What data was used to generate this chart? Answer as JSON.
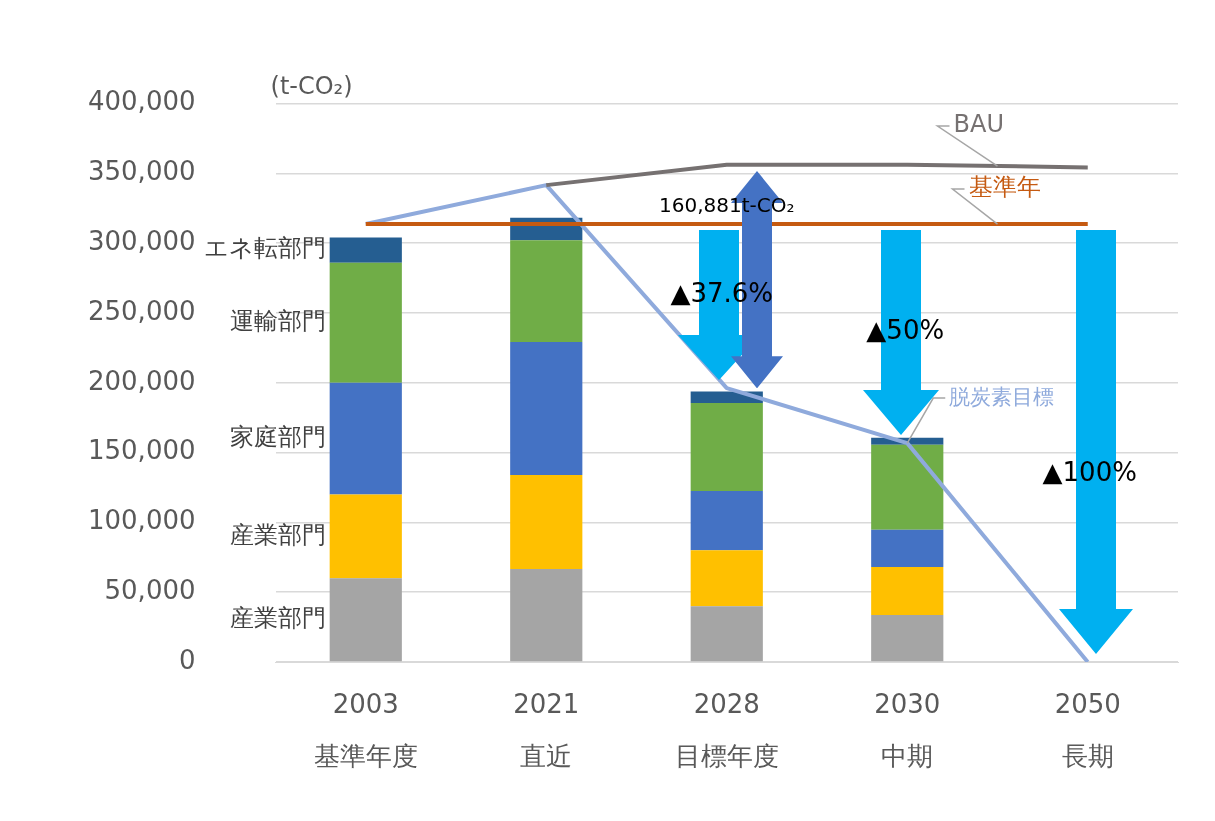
{
  "chart_data": {
    "type": "bar",
    "stacked": true,
    "ylabel": "(t-CO₂)",
    "categories": [
      "2003\n基準年度",
      "2021\n直近",
      "2028\n目標年度",
      "2030\n中期",
      "2050\n長期"
    ],
    "series": [
      {
        "name": "産業部門",
        "color": "#a5a5a5",
        "values": [
          60000,
          66700,
          40000,
          33700,
          null
        ]
      },
      {
        "name": "産業部門",
        "color": "#ffc000",
        "values": [
          60000,
          67300,
          40000,
          34300,
          null
        ]
      },
      {
        "name": "家庭部門",
        "color": "#4472c4",
        "values": [
          80000,
          95200,
          42500,
          26700,
          null
        ]
      },
      {
        "name": "運輸部門",
        "color": "#70ad47",
        "values": [
          86000,
          73000,
          63000,
          61000,
          null
        ]
      },
      {
        "name": "エネ転部門",
        "color": "#255e91",
        "values": [
          18000,
          16000,
          8300,
          5000,
          null
        ]
      },
      {
        "name": "BAU",
        "type": "line",
        "color": "#767171",
        "values": [
          null,
          341600,
          356200,
          356200,
          354300
        ]
      },
      {
        "name": "基準年",
        "type": "line",
        "color": "#c55a11",
        "values": [
          313700,
          313700,
          313700,
          313700,
          313700
        ]
      },
      {
        "name": "脱炭素目標",
        "type": "line",
        "color": "#8faadc",
        "values": [
          313700,
          341600,
          196200,
          156800,
          0
        ]
      }
    ],
    "ylim": [
      0,
      400000
    ],
    "yticks": [
      {
        "value": 0,
        "label": "0"
      },
      {
        "value": 50000,
        "label": "50,000"
      },
      {
        "value": 100000,
        "label": "100,000"
      },
      {
        "value": 150000,
        "label": "150,000"
      },
      {
        "value": 200000,
        "label": "200,000"
      },
      {
        "value": 250000,
        "label": "250,000"
      },
      {
        "value": 300000,
        "label": "300,000"
      },
      {
        "value": 350000,
        "label": "350,000"
      },
      {
        "value": 400000,
        "label": "400,000"
      }
    ],
    "grid": "y",
    "legend": false,
    "marker": "none",
    "line_style": "solid",
    "annotations": [
      {
        "text": "160,881t-CO₂",
        "x": "2028\n目標年度",
        "y": 356200
      },
      "▲37.6%",
      "▲50%",
      "▲100%"
    ]
  }
}
